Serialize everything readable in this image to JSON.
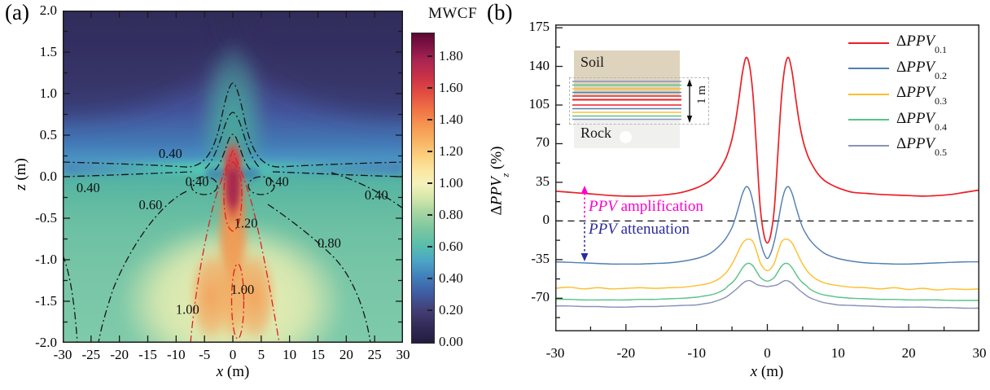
{
  "figure": {
    "panel_a": {
      "tag": "(a)",
      "xlabel_var": "x",
      "xlabel_unit": " (m)",
      "ylabel_var": "z",
      "ylabel_unit": " (m)",
      "colorbar_title": "MWCF"
    },
    "panel_b": {
      "tag": "(b)",
      "xlabel_var": "x",
      "xlabel_unit": " (m)",
      "ylabel": {
        "prefix": "Δ",
        "main": "PPV",
        "sub": "z",
        "suffix": " (%)"
      },
      "annotations": {
        "amplification": {
          "italic": "PPV",
          "text": " amplification",
          "color": "#ff00cc"
        },
        "attenuation": {
          "italic": "PPV",
          "text": " attenuation",
          "color": "#2a2a9e"
        }
      },
      "inset": {
        "soil_label": "Soil",
        "rock_label": "Rock",
        "dim_label": "1 m"
      }
    }
  },
  "chart_data": [
    {
      "type": "heatmap",
      "title": "MWCF contour map",
      "xlabel": "x (m)",
      "ylabel": "z (m)",
      "xlim": [
        -30,
        30
      ],
      "ylim": [
        -2,
        2
      ],
      "xticks": [
        -30,
        -25,
        -20,
        -15,
        -10,
        -5,
        0,
        5,
        10,
        15,
        20,
        25,
        30
      ],
      "yticks": [
        "2.0",
        "1.5",
        "1.0",
        "0.5",
        "0.0",
        "-0.5",
        "-1.0",
        "-1.5",
        "-2.0"
      ],
      "contour_levels": [
        0.4,
        0.6,
        0.8,
        1.0,
        1.2
      ],
      "contour_labels": [
        {
          "text": "0.40",
          "x": -11,
          "z": 0.28
        },
        {
          "text": "0.40",
          "x": -25.5,
          "z": -0.13
        },
        {
          "text": "0.40",
          "x": -6.3,
          "z": -0.06
        },
        {
          "text": "0.40",
          "x": 7.8,
          "z": -0.06
        },
        {
          "text": "0.40",
          "x": 25.3,
          "z": -0.22
        },
        {
          "text": "0.60",
          "x": -14.5,
          "z": -0.34
        },
        {
          "text": "0.80",
          "x": 17,
          "z": -0.8
        },
        {
          "text": "1.20",
          "x": 2.3,
          "z": -0.56
        },
        {
          "text": "1.00",
          "x": -8,
          "z": -1.6
        },
        {
          "text": "1.00",
          "x": 1.7,
          "z": -1.36
        }
      ],
      "colorbar": {
        "title": "MWCF",
        "range": [
          0,
          1.95
        ],
        "ticks": [
          "1.80",
          "1.60",
          "1.40",
          "1.20",
          "1.00",
          "0.80",
          "0.60",
          "0.40",
          "0.20",
          "0.00"
        ],
        "stops": [
          [
            0,
            "#221c40"
          ],
          [
            0.1,
            "#322a56"
          ],
          [
            0.2,
            "#433e74"
          ],
          [
            0.32,
            "#3f5fa5"
          ],
          [
            0.42,
            "#4180ba"
          ],
          [
            0.52,
            "#4da6c6"
          ],
          [
            0.6,
            "#55bcae"
          ],
          [
            0.72,
            "#7cc79f"
          ],
          [
            0.83,
            "#abd6a2"
          ],
          [
            0.92,
            "#d8e8ac"
          ],
          [
            1.0,
            "#f4f1bb"
          ],
          [
            1.08,
            "#fbe8a2"
          ],
          [
            1.18,
            "#fbcf7e"
          ],
          [
            1.28,
            "#f8b060"
          ],
          [
            1.38,
            "#f5934f"
          ],
          [
            1.48,
            "#ef6e44"
          ],
          [
            1.58,
            "#e04b41"
          ],
          [
            1.68,
            "#c93048"
          ],
          [
            1.78,
            "#a92552"
          ],
          [
            1.88,
            "#7c1144"
          ],
          [
            1.95,
            "#5c0830"
          ]
        ]
      }
    },
    {
      "type": "line",
      "xlabel": "x (m)",
      "ylabel": "ΔPPV_z (%)",
      "xlim": [
        -30,
        30
      ],
      "ylim": [
        -100,
        178
      ],
      "xticks": [
        -30,
        -20,
        -10,
        0,
        10,
        20,
        30
      ],
      "yticks": [
        175,
        140,
        105,
        70,
        35,
        0,
        -35,
        -70
      ],
      "zero_line_y": 0,
      "legend_position": "top-right",
      "x": [
        -30,
        -28,
        -26,
        -24,
        -22,
        -20,
        -18,
        -16,
        -14,
        -12,
        -10,
        -9,
        -8,
        -7,
        -6,
        -5.5,
        -5,
        -4.5,
        -4,
        -3.5,
        -3,
        -2.5,
        -2,
        -1.5,
        -1,
        -0.5,
        0,
        0.5,
        1,
        1.5,
        2,
        2.5,
        3,
        3.5,
        4,
        4.5,
        5,
        5.5,
        6,
        7,
        8,
        9,
        10,
        12,
        14,
        16,
        18,
        20,
        22,
        24,
        26,
        28,
        30
      ],
      "series": [
        {
          "prefix": "Δ",
          "name": "PPV",
          "sub": "0.1",
          "color": "#ec1f26",
          "values": [
            27,
            26,
            25,
            24,
            23,
            22.5,
            22.5,
            23,
            24,
            26,
            30,
            33,
            37,
            44,
            55,
            63,
            74,
            90,
            112,
            135,
            148,
            140,
            112,
            62,
            12,
            -12,
            -20,
            -12,
            12,
            62,
            112,
            140,
            148,
            135,
            112,
            90,
            74,
            63,
            55,
            44,
            37,
            33,
            30,
            26,
            25,
            24,
            23.5,
            23,
            22.5,
            23,
            24,
            26,
            28
          ]
        },
        {
          "prefix": "Δ",
          "name": "PPV",
          "sub": "0.2",
          "color": "#537fb2",
          "values": [
            -37,
            -37.5,
            -38,
            -38.5,
            -39,
            -39,
            -39,
            -38.5,
            -38,
            -36.5,
            -34,
            -32,
            -29,
            -24,
            -17,
            -12,
            -6,
            3,
            14,
            25,
            31,
            28,
            16,
            -2,
            -18,
            -29,
            -34,
            -29,
            -18,
            -2,
            16,
            28,
            31,
            25,
            14,
            3,
            -6,
            -12,
            -17,
            -24,
            -29,
            -32,
            -34,
            -36.5,
            -38,
            -38.5,
            -39,
            -39,
            -38.5,
            -38,
            -37.5,
            -37,
            -37
          ]
        },
        {
          "prefix": "Δ",
          "name": "PPV",
          "sub": "0.3",
          "color": "#fcc02e",
          "values": [
            -61,
            -60,
            -61.5,
            -60.5,
            -61.5,
            -61,
            -60.5,
            -61,
            -60.5,
            -60,
            -58.5,
            -57.5,
            -56,
            -53,
            -48,
            -44,
            -39,
            -33,
            -26,
            -20,
            -17,
            -16.5,
            -19,
            -28,
            -38,
            -43,
            -45,
            -43,
            -38,
            -28,
            -19,
            -16.5,
            -17,
            -20,
            -26,
            -33,
            -39,
            -44,
            -48,
            -53,
            -56,
            -57.5,
            -58.5,
            -60,
            -60.5,
            -61.5,
            -60.5,
            -62,
            -61,
            -62.5,
            -61.5,
            -62,
            -61.5
          ]
        },
        {
          "prefix": "Δ",
          "name": "PPV",
          "sub": "0.4",
          "color": "#58c488",
          "values": [
            -71,
            -71,
            -71.5,
            -71.5,
            -71.5,
            -71.5,
            -71,
            -71,
            -70.5,
            -70,
            -69,
            -68,
            -67,
            -65,
            -61.5,
            -58.5,
            -56,
            -52.5,
            -47.5,
            -42.5,
            -39,
            -38.5,
            -41,
            -46,
            -51,
            -53.5,
            -54.5,
            -53.5,
            -51,
            -46,
            -41,
            -38.5,
            -39,
            -42.5,
            -47.5,
            -52.5,
            -56,
            -58.5,
            -61.5,
            -65,
            -67,
            -68,
            -69,
            -70,
            -70.5,
            -71,
            -71,
            -71.5,
            -71.5,
            -71.5,
            -72,
            -72,
            -72
          ]
        },
        {
          "prefix": "Δ",
          "name": "PPV",
          "sub": "0.5",
          "color": "#8c92ba",
          "values": [
            -77,
            -77,
            -77.5,
            -77.5,
            -78,
            -78,
            -77.5,
            -77.5,
            -77,
            -76.5,
            -76,
            -75,
            -74,
            -72,
            -69.5,
            -67.5,
            -65,
            -62.5,
            -59.5,
            -56.5,
            -54.5,
            -54,
            -55.5,
            -57.5,
            -58.5,
            -59,
            -59.5,
            -59,
            -58.5,
            -57.5,
            -55.5,
            -54,
            -54.5,
            -56.5,
            -59.5,
            -62.5,
            -65,
            -67.5,
            -69.5,
            -72,
            -74,
            -75,
            -76,
            -76.5,
            -77,
            -77.5,
            -78,
            -78,
            -78,
            -78.5,
            -78.5,
            -79,
            -79
          ]
        }
      ]
    }
  ]
}
